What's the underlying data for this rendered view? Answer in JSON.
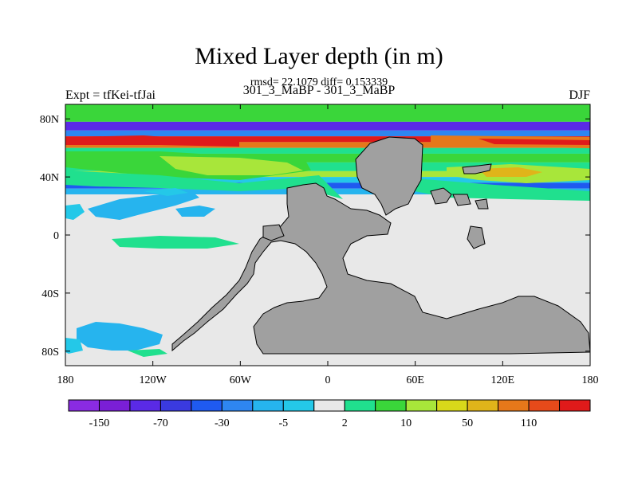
{
  "title": "Mixed Layer depth (in m)",
  "stats_line": "rmsd= 22.1079 diff= 0.153339",
  "subtitle": "301_3_MaBP - 301_3_MaBP",
  "left_label": "Expt = tfKei-tfJai",
  "right_label": "DJF",
  "chart_data": {
    "type": "heatmap",
    "projection": "cylindrical-equidistant",
    "xlim": [
      -180,
      180
    ],
    "ylim": [
      -90,
      90
    ],
    "x_ticks": [
      {
        "value": -180,
        "label": "180"
      },
      {
        "value": -120,
        "label": "120W"
      },
      {
        "value": -60,
        "label": "60W"
      },
      {
        "value": 0,
        "label": "0"
      },
      {
        "value": 60,
        "label": "60E"
      },
      {
        "value": 120,
        "label": "120E"
      },
      {
        "value": 180,
        "label": "180"
      }
    ],
    "y_ticks": [
      {
        "value": 80,
        "label": "80N"
      },
      {
        "value": 40,
        "label": "40N"
      },
      {
        "value": 0,
        "label": "0"
      },
      {
        "value": -40,
        "label": "40S"
      },
      {
        "value": -80,
        "label": "80S"
      }
    ],
    "colorbar": {
      "orientation": "horizontal",
      "colors": [
        "#8a2be2",
        "#7a1fd6",
        "#5a2ae6",
        "#3a3ae0",
        "#1f5af0",
        "#2e86f0",
        "#26b4ee",
        "#24c8e8",
        "#e8e8e8",
        "#20e08e",
        "#3ad63a",
        "#a8e63a",
        "#d8d81a",
        "#e0b41a",
        "#e6781a",
        "#e64a1a",
        "#e01a1a"
      ],
      "tick_labels": [
        {
          "bin_edge": 1,
          "label": "-150"
        },
        {
          "bin_edge": 3,
          "label": "-70"
        },
        {
          "bin_edge": 5,
          "label": "-30"
        },
        {
          "bin_edge": 7,
          "label": "-5"
        },
        {
          "bin_edge": 9,
          "label": "2"
        },
        {
          "bin_edge": 11,
          "label": "10"
        },
        {
          "bin_edge": 13,
          "label": "50"
        },
        {
          "bin_edge": 15,
          "label": "110"
        }
      ]
    },
    "land_color": "#a0a0a0",
    "background_color": "#e8e8e8",
    "bands": [
      {
        "lat": [
          78,
          90
        ],
        "color": "#3ad63a"
      },
      {
        "lat": [
          72,
          78
        ],
        "color": "#5a2ae6"
      },
      {
        "lat": [
          68,
          72
        ],
        "color": "#2e86f0"
      },
      {
        "lat": [
          64,
          68
        ],
        "color": "#e01a1a"
      },
      {
        "lat": [
          60,
          64
        ],
        "color": "#e6781a"
      },
      {
        "lat": [
          56,
          60
        ],
        "color": "#20e08e"
      },
      {
        "lat": [
          50,
          56
        ],
        "color": "#3ad63a"
      },
      {
        "lat": [
          44,
          50
        ],
        "color": "#20e08e"
      },
      {
        "lat": [
          40,
          44
        ],
        "color": "#a8e63a"
      },
      {
        "lat": [
          36,
          40
        ],
        "color": "#24c8e8"
      },
      {
        "lat": [
          32,
          36
        ],
        "color": "#1f5af0"
      },
      {
        "lat": [
          28,
          32
        ],
        "color": "#26b4ee"
      }
    ]
  }
}
